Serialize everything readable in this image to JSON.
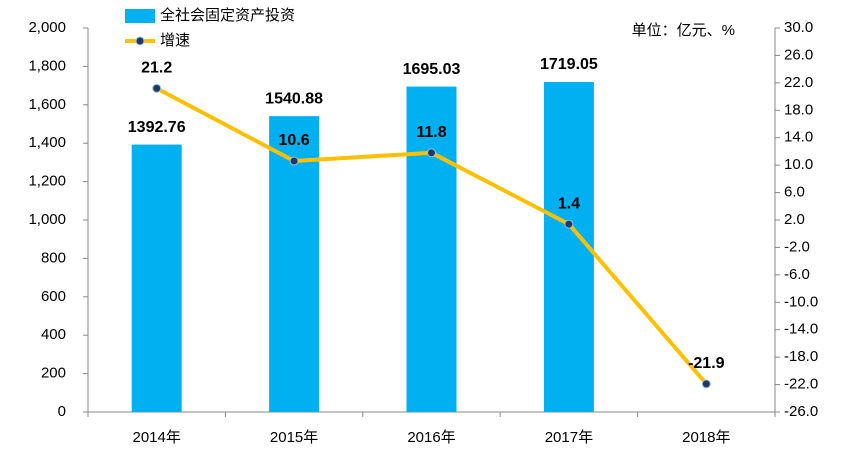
{
  "chart_data": {
    "type": "bar_line",
    "annotation": "单位：亿元、%",
    "categories": [
      "2014年",
      "2015年",
      "2016年",
      "2017年",
      "2018年"
    ],
    "series": [
      {
        "name": "全社会固定资产投资",
        "type": "bar",
        "color": "#00b0f0",
        "values": [
          1392.76,
          1540.88,
          1695.03,
          1719.05,
          null
        ]
      },
      {
        "name": "增速",
        "type": "line",
        "axis": "y2",
        "color": "#ffc000",
        "values": [
          21.2,
          10.6,
          11.8,
          1.4,
          -21.9
        ]
      }
    ],
    "ylim": [
      0,
      2000
    ],
    "yticks": [
      0,
      200,
      400,
      600,
      800,
      {
        "value": 1000,
        "label": "1,000"
      },
      {
        "value": 1200,
        "label": "1,200"
      },
      {
        "value": 1400,
        "label": "1,400"
      },
      {
        "value": 1600,
        "label": "1,600"
      },
      {
        "value": 1800,
        "label": "1,800"
      },
      {
        "value": 2000,
        "label": "2,000"
      }
    ],
    "y2lim": [
      -26,
      30
    ],
    "y2ticks": [
      {
        "value": 30,
        "label": "30.0"
      },
      {
        "value": 26,
        "label": "26.0"
      },
      {
        "value": 22,
        "label": "22.0"
      },
      {
        "value": 18,
        "label": "18.0"
      },
      {
        "value": 14,
        "label": "14.0"
      },
      {
        "value": 10,
        "label": "10.0"
      },
      {
        "value": 6,
        "label": "6.0"
      },
      {
        "value": 2,
        "label": "2.0"
      },
      {
        "value": -2,
        "label": "-2.0"
      },
      {
        "value": -6,
        "label": "-6.0"
      },
      {
        "value": -10,
        "label": "-10.0"
      },
      {
        "value": -14,
        "label": "-14.0"
      },
      {
        "value": -18,
        "label": "-18.0"
      },
      {
        "value": -22,
        "label": "-22.0"
      },
      {
        "value": -26,
        "label": "-26.0"
      }
    ]
  }
}
